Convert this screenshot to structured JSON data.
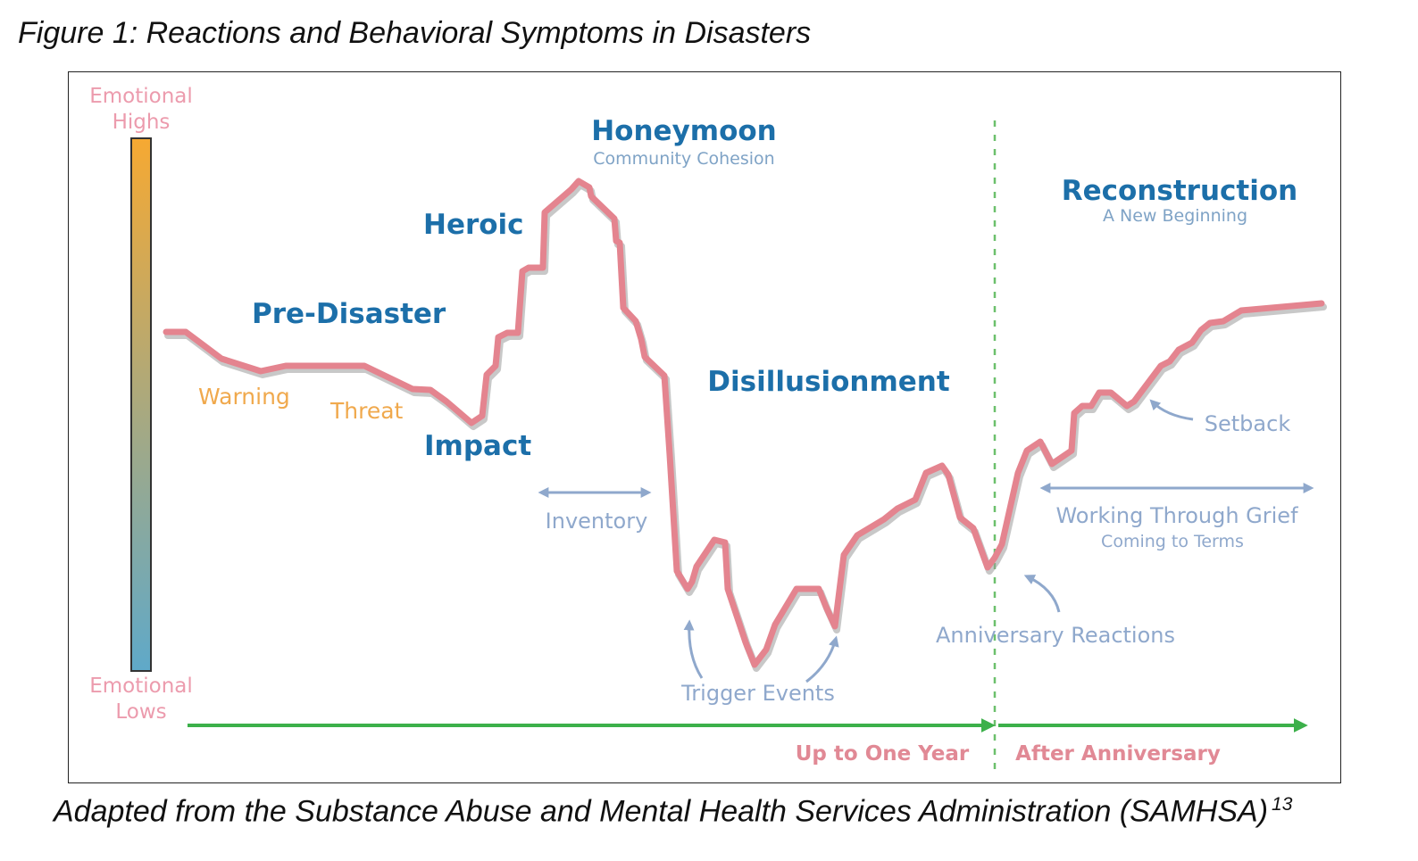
{
  "figure": {
    "title": "Figure 1: Reactions and Behavioral Symptoms in Disasters",
    "caption": "Adapted from the Substance Abuse and Mental Health Services Administration (SAMHSA)",
    "caption_ref": "13"
  },
  "scale": {
    "top_label_line1": "Emotional",
    "top_label_line2": "Highs",
    "bottom_label_line1": "Emotional",
    "bottom_label_line2": "Lows",
    "gradient_top_color": "#f6a932",
    "gradient_bottom_color": "#5fa9c9"
  },
  "phases": {
    "pre_disaster": "Pre-Disaster",
    "warning": "Warning",
    "threat": "Threat",
    "impact": "Impact",
    "heroic": "Heroic",
    "honeymoon": "Honeymoon",
    "honeymoon_sub": "Community Cohesion",
    "disillusionment": "Disillusionment",
    "reconstruction": "Reconstruction",
    "reconstruction_sub": "A New Beginning"
  },
  "annotations": {
    "inventory": "Inventory",
    "trigger_events": "Trigger Events",
    "anniversary_reactions": "Anniversary Reactions",
    "setback": "Setback",
    "working_through_grief": "Working Through Grief",
    "coming_to_terms": "Coming to Terms"
  },
  "timeline": {
    "up_to_one_year": "Up to One Year",
    "after_anniversary": "After Anniversary"
  },
  "colors": {
    "curve": "#e4848f",
    "curve_shadow": "#9a9a9a",
    "phase_text": "#1c6fa9",
    "annotation": "#8fa8cc",
    "timeline_arrow": "#3cb04a",
    "anniversary_divider": "#6cc06c",
    "time_label": "#e18995"
  }
}
